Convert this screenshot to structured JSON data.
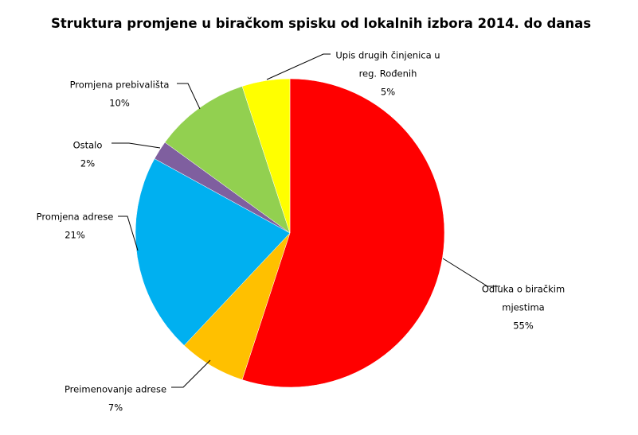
{
  "chart_data": {
    "type": "pie",
    "title": "Struktura promjene u biračkom spisku od lokalnih izbora 2014. do danas",
    "start_angle": 0,
    "direction": "clockwise",
    "slices": [
      {
        "label": "Odluka o biračkim mjestima",
        "label_lines": [
          "Odluka o biračkim",
          "mjestima"
        ],
        "value": 55,
        "display": "55%",
        "color": "#FF0000"
      },
      {
        "label": "Preimenovanje adrese",
        "label_lines": [
          "Preimenovanje adrese"
        ],
        "value": 7,
        "display": "7%",
        "color": "#FFC000"
      },
      {
        "label": "Promjena adrese",
        "label_lines": [
          "Promjena adrese"
        ],
        "value": 21,
        "display": "21%",
        "color": "#00B0F0"
      },
      {
        "label": "Ostalo",
        "label_lines": [
          "Ostalo"
        ],
        "value": 2,
        "display": "2%",
        "color": "#7F5F9F"
      },
      {
        "label": "Promjena prebivališta",
        "label_lines": [
          "Promjena prebivališta"
        ],
        "value": 10,
        "display": "10%",
        "color": "#92D050"
      },
      {
        "label": "Upis drugih činjenica u reg. Rođenih",
        "label_lines": [
          "Upis drugih činjenica u",
          "reg. Rođenih"
        ],
        "value": 5,
        "display": "5%",
        "color": "#FFFF00"
      }
    ]
  }
}
